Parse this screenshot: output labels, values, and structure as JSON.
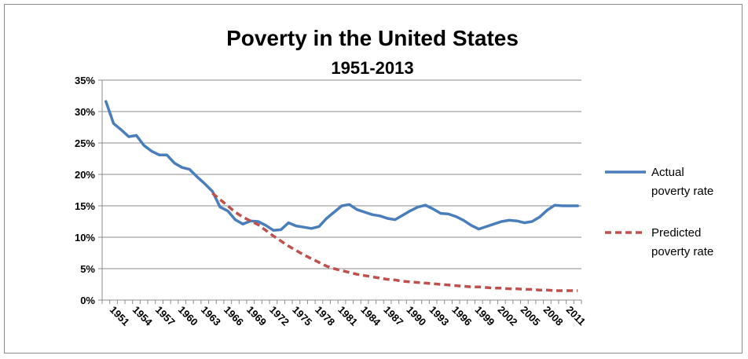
{
  "chart_data": {
    "type": "line",
    "title": "Poverty in the United States",
    "subtitle": "1951-2013",
    "xlabel": "",
    "ylabel": "",
    "ylim": [
      0,
      35
    ],
    "y_ticks": [
      "0%",
      "5%",
      "10%",
      "15%",
      "20%",
      "25%",
      "30%",
      "35%"
    ],
    "x_tick_labels": [
      "1951",
      "1954",
      "1957",
      "1960",
      "1963",
      "1966",
      "1969",
      "1972",
      "1975",
      "1978",
      "1981",
      "1984",
      "1987",
      "1990",
      "1993",
      "1996",
      "1999",
      "2002",
      "2005",
      "2008",
      "2011"
    ],
    "x_range": [
      1951,
      2013
    ],
    "grid": true,
    "legend_position": "right",
    "series": [
      {
        "name": "Actual poverty rate",
        "legend_lines": [
          "Actual",
          "poverty rate"
        ],
        "color": "#4a7ebb",
        "style": "solid",
        "x": [
          1951,
          1952,
          1953,
          1954,
          1955,
          1956,
          1957,
          1958,
          1959,
          1960,
          1961,
          1962,
          1963,
          1964,
          1965,
          1966,
          1967,
          1968,
          1969,
          1970,
          1971,
          1972,
          1973,
          1974,
          1975,
          1976,
          1977,
          1978,
          1979,
          1980,
          1981,
          1982,
          1983,
          1984,
          1985,
          1986,
          1987,
          1988,
          1989,
          1990,
          1991,
          1992,
          1993,
          1994,
          1995,
          1996,
          1997,
          1998,
          1999,
          2000,
          2001,
          2002,
          2003,
          2004,
          2005,
          2006,
          2007,
          2008,
          2009,
          2010,
          2011,
          2012,
          2013
        ],
        "values": [
          31.6,
          28.1,
          27.1,
          26.0,
          26.2,
          24.6,
          23.7,
          23.1,
          23.1,
          21.8,
          21.1,
          20.8,
          19.6,
          18.5,
          17.3,
          14.8,
          14.2,
          12.8,
          12.1,
          12.6,
          12.5,
          11.9,
          11.1,
          11.2,
          12.3,
          11.8,
          11.6,
          11.4,
          11.7,
          13.0,
          14.0,
          15.0,
          15.2,
          14.4,
          14.0,
          13.6,
          13.4,
          13.0,
          12.8,
          13.5,
          14.2,
          14.8,
          15.1,
          14.5,
          13.8,
          13.7,
          13.3,
          12.7,
          11.9,
          11.3,
          11.7,
          12.1,
          12.5,
          12.7,
          12.6,
          12.3,
          12.5,
          13.2,
          14.3,
          15.1,
          15.0,
          15.0,
          15.0
        ]
      },
      {
        "name": "Predicted poverty rate",
        "legend_lines": [
          "Predicted",
          "poverty rate"
        ],
        "color": "#c0504d",
        "style": "dashed",
        "x": [
          1965,
          1966,
          1967,
          1968,
          1969,
          1970,
          1971,
          1972,
          1973,
          1974,
          1975,
          1976,
          1977,
          1978,
          1979,
          1980,
          1981,
          1982,
          1983,
          1984,
          1985,
          1986,
          1987,
          1988,
          1989,
          1990,
          1991,
          1992,
          1993,
          1994,
          1995,
          1996,
          1997,
          1998,
          1999,
          2000,
          2001,
          2002,
          2003,
          2004,
          2005,
          2006,
          2007,
          2008,
          2009,
          2010,
          2011,
          2012,
          2013
        ],
        "values": [
          17.0,
          16.0,
          15.0,
          14.0,
          13.2,
          12.6,
          12.0,
          11.1,
          10.2,
          9.4,
          8.6,
          7.9,
          7.2,
          6.6,
          6.0,
          5.4,
          5.0,
          4.7,
          4.4,
          4.1,
          3.9,
          3.7,
          3.5,
          3.3,
          3.2,
          3.0,
          2.9,
          2.8,
          2.7,
          2.6,
          2.5,
          2.4,
          2.3,
          2.2,
          2.1,
          2.1,
          2.0,
          1.9,
          1.9,
          1.8,
          1.8,
          1.7,
          1.7,
          1.6,
          1.6,
          1.5,
          1.5,
          1.5,
          1.5
        ]
      }
    ]
  }
}
